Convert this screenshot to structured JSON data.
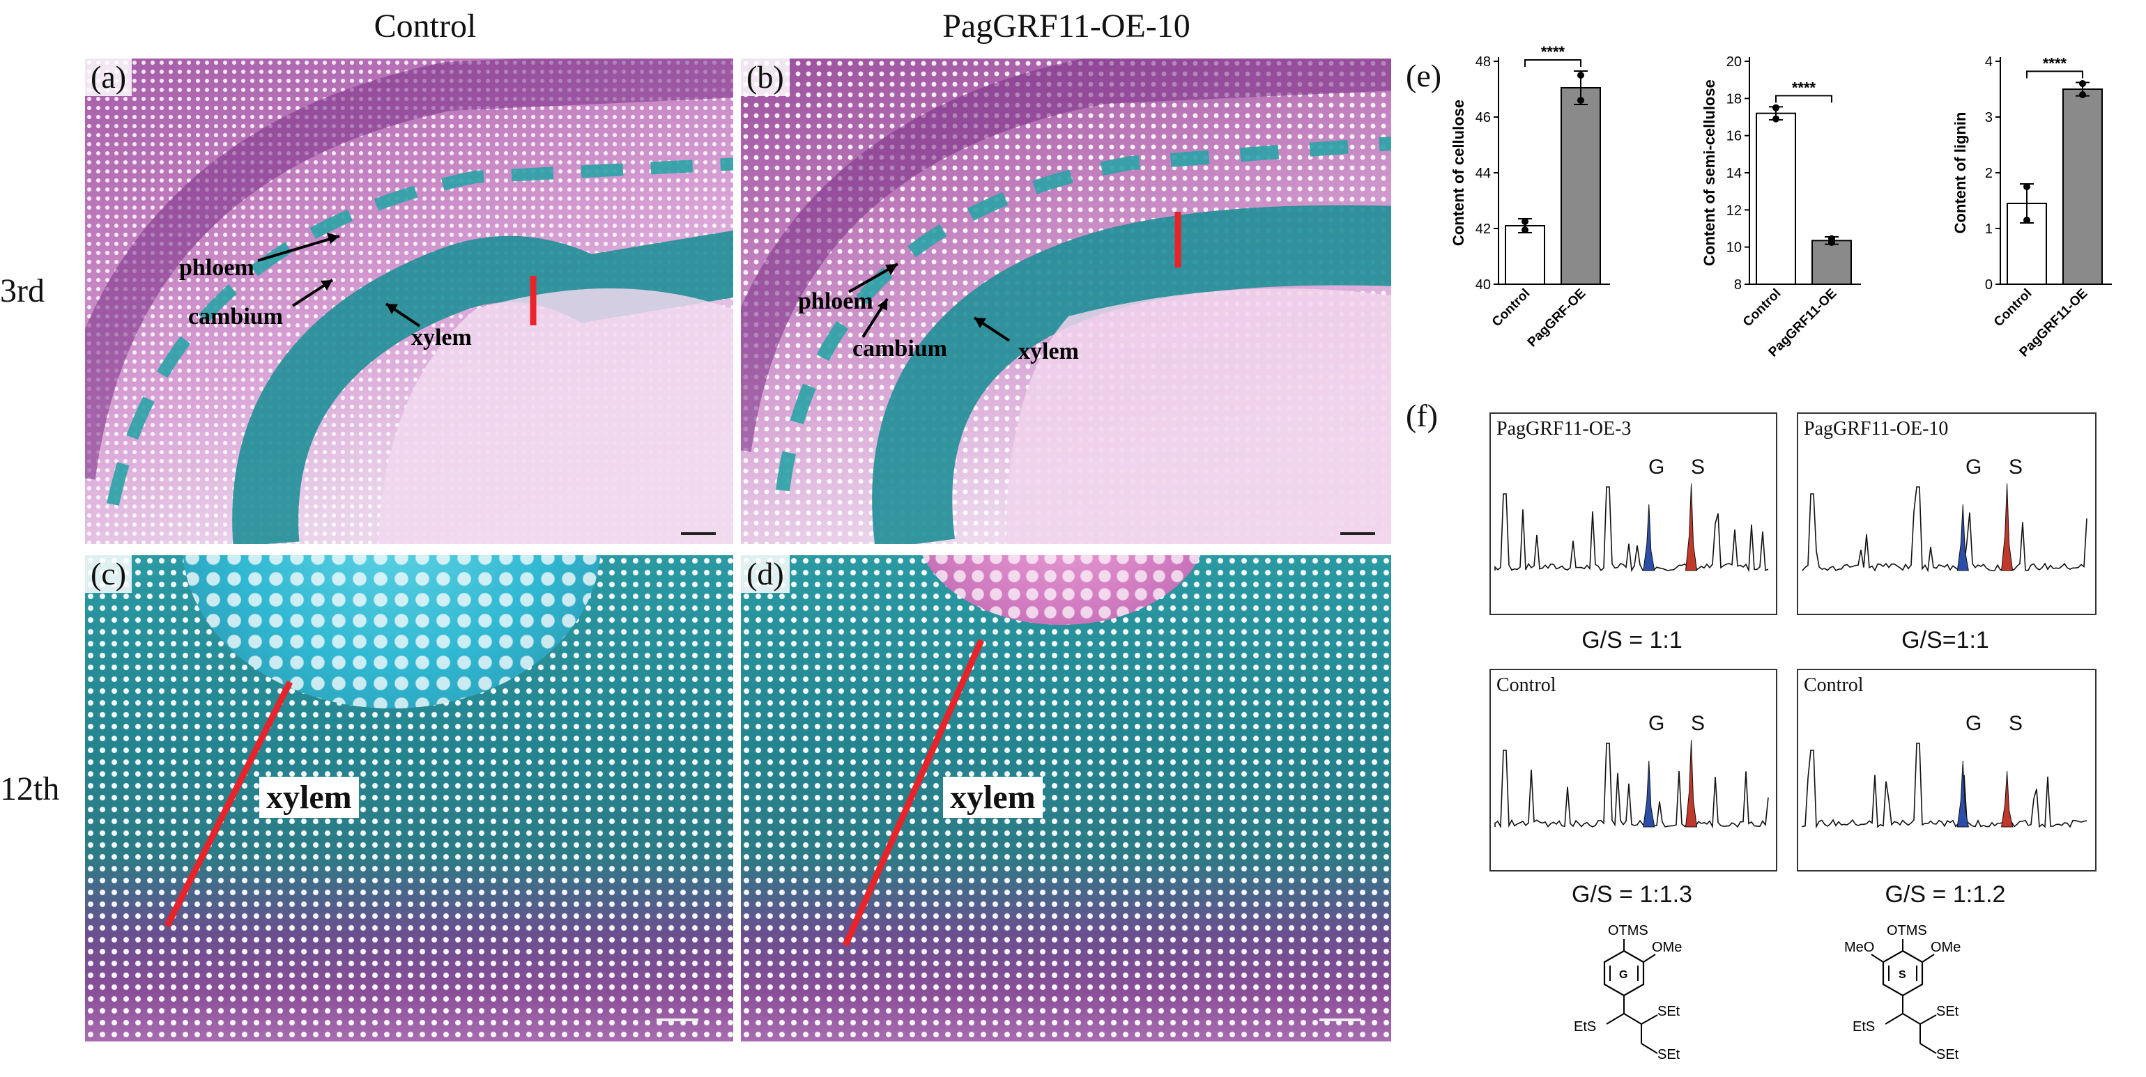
{
  "columns": {
    "control": "Control",
    "oe": "PagGRF11-OE-10"
  },
  "rows": {
    "r1": "3rd",
    "r2": "12th"
  },
  "panels": {
    "a": "(a)",
    "b": "(b)",
    "c": "(c)",
    "d": "(d)",
    "e": "(e)",
    "f": "(f)"
  },
  "annotations": {
    "phloem": "phloem",
    "cambium": "cambium",
    "xylem": "xylem"
  },
  "colors": {
    "highlight_line": "#e8232a",
    "control_bar": "#ffffff",
    "oe_bar": "#8a8a8a",
    "guaiacyl_peak": "#2b4fa8",
    "syringyl_peak": "#c2382b"
  },
  "chart_data": [
    {
      "type": "bar",
      "categories": [
        "Control",
        "PagGRF-OE"
      ],
      "values": [
        42.1,
        47.05
      ],
      "errors": [
        0.25,
        0.6
      ],
      "points": [
        [
          41.95,
          42.25
        ],
        [
          46.6,
          47.5
        ]
      ],
      "ylabel": "Content of cellulose",
      "ylim": [
        40,
        48
      ],
      "yticks": [
        40,
        42,
        44,
        46,
        48
      ],
      "significance": "****"
    },
    {
      "type": "bar",
      "categories": [
        "Control",
        "PagGRF11-OE"
      ],
      "values": [
        17.2,
        10.35
      ],
      "errors": [
        0.35,
        0.2
      ],
      "points": [
        [
          16.9,
          17.5
        ],
        [
          10.25,
          10.45
        ]
      ],
      "ylabel": "Content of semi-cellulose",
      "ylim": [
        8,
        20
      ],
      "yticks": [
        8,
        10,
        12,
        14,
        16,
        18,
        20
      ],
      "significance": "****"
    },
    {
      "type": "bar",
      "categories": [
        "Control",
        "PagGRF11-OE"
      ],
      "values": [
        1.45,
        3.5
      ],
      "errors": [
        0.35,
        0.12
      ],
      "points": [
        [
          1.15,
          1.75
        ],
        [
          3.4,
          3.6
        ]
      ],
      "ylabel": "Content of lignin",
      "ylim": [
        0,
        4
      ],
      "yticks": [
        0,
        1,
        2,
        3,
        4
      ],
      "significance": "****"
    }
  ],
  "chromatograms": [
    {
      "title": "PagGRF11-OE-3",
      "peaks": [
        "G",
        "S"
      ],
      "ratio": "G/S = 1:1"
    },
    {
      "title": "PagGRF11-OE-10",
      "peaks": [
        "G",
        "S"
      ],
      "ratio": "G/S=1:1"
    },
    {
      "title": "Control",
      "peaks": [
        "G",
        "S"
      ],
      "ratio": "G/S = 1:1.3"
    },
    {
      "title": "Control",
      "peaks": [
        "G",
        "S"
      ],
      "ratio": "G/S = 1:1.2"
    }
  ],
  "structures": {
    "g": {
      "top": "OTMS",
      "right": "OMe",
      "ring": "G",
      "left_chain": "EtS",
      "right_chain": "SEt",
      "bottom_chain": "SEt"
    },
    "s": {
      "top": "OTMS",
      "left": "MeO",
      "right": "OMe",
      "ring": "S",
      "left_chain": "EtS",
      "right_chain": "SEt",
      "bottom_chain": "SEt"
    }
  }
}
